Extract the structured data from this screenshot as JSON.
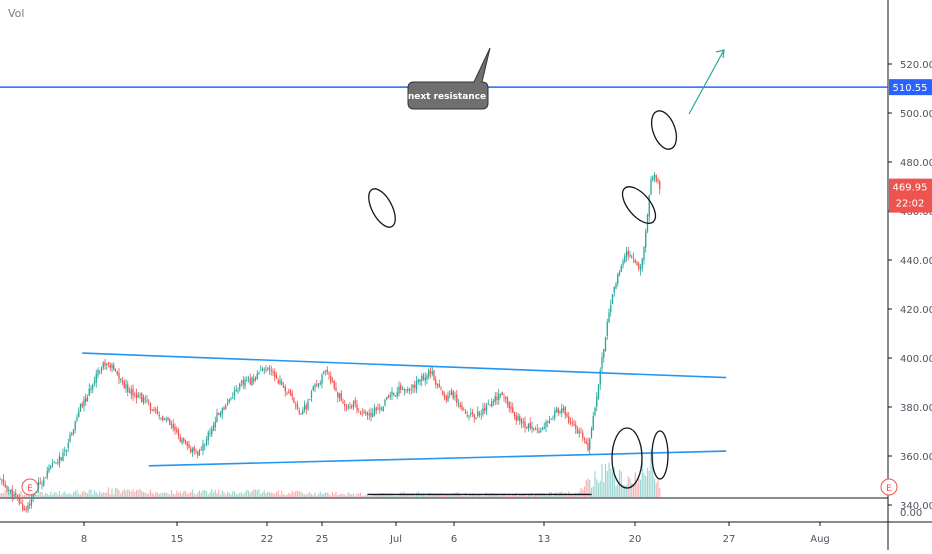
{
  "header": {
    "volume_label": "Vol"
  },
  "chart_data": {
    "type": "candlestick",
    "x_tick_labels": [
      "8",
      "15",
      "22",
      "25",
      "Jul",
      "6",
      "13",
      "20",
      "27",
      "Aug"
    ],
    "price_axis_labels": [
      "520.00",
      "500.00",
      "480.00",
      "460.00",
      "440.00",
      "420.00",
      "400.00",
      "380.00",
      "360.00",
      "340.00"
    ],
    "volume_axis_label": "0.00",
    "ylim": [
      330,
      525
    ],
    "price_path": [
      [
        0,
        350
      ],
      [
        5,
        346
      ],
      [
        10,
        342
      ],
      [
        14,
        338
      ],
      [
        18,
        342
      ],
      [
        22,
        348
      ],
      [
        26,
        352
      ],
      [
        30,
        356
      ],
      [
        33,
        358
      ],
      [
        36,
        360
      ],
      [
        40,
        368
      ],
      [
        43,
        374
      ],
      [
        46,
        380
      ],
      [
        50,
        384
      ],
      [
        55,
        394
      ],
      [
        60,
        398
      ],
      [
        64,
        396
      ],
      [
        68,
        392
      ],
      [
        72,
        388
      ],
      [
        76,
        386
      ],
      [
        80,
        384
      ],
      [
        84,
        382
      ],
      [
        88,
        378
      ],
      [
        90,
        376
      ],
      [
        94,
        375
      ],
      [
        98,
        372
      ],
      [
        102,
        368
      ],
      [
        106,
        364
      ],
      [
        110,
        362
      ],
      [
        112,
        360
      ],
      [
        116,
        364
      ],
      [
        120,
        370
      ],
      [
        124,
        376
      ],
      [
        128,
        380
      ],
      [
        132,
        384
      ],
      [
        136,
        388
      ],
      [
        140,
        390
      ],
      [
        144,
        391
      ],
      [
        148,
        394
      ],
      [
        152,
        395
      ],
      [
        156,
        394
      ],
      [
        160,
        390
      ],
      [
        164,
        386
      ],
      [
        168,
        382
      ],
      [
        172,
        378
      ],
      [
        175,
        380
      ],
      [
        178,
        386
      ],
      [
        182,
        390
      ],
      [
        186,
        394
      ],
      [
        190,
        390
      ],
      [
        194,
        384
      ],
      [
        198,
        380
      ],
      [
        202,
        381
      ],
      [
        206,
        378
      ],
      [
        210,
        376
      ],
      [
        214,
        378
      ],
      [
        218,
        380
      ],
      [
        222,
        384
      ],
      [
        226,
        386
      ],
      [
        230,
        388
      ],
      [
        234,
        386
      ],
      [
        238,
        390
      ],
      [
        242,
        392
      ],
      [
        246,
        395
      ],
      [
        250,
        388
      ],
      [
        254,
        384
      ],
      [
        258,
        386
      ],
      [
        262,
        382
      ],
      [
        266,
        378
      ],
      [
        270,
        376
      ],
      [
        274,
        378
      ],
      [
        278,
        380
      ],
      [
        282,
        383
      ],
      [
        286,
        385
      ],
      [
        290,
        381
      ],
      [
        294,
        376
      ],
      [
        298,
        374
      ],
      [
        302,
        372
      ],
      [
        306,
        370
      ],
      [
        310,
        372
      ],
      [
        314,
        376
      ],
      [
        318,
        378
      ],
      [
        322,
        378
      ],
      [
        326,
        374
      ],
      [
        330,
        370
      ],
      [
        334,
        366
      ],
      [
        336,
        362
      ],
      [
        338,
        372
      ],
      [
        342,
        390
      ],
      [
        346,
        410
      ],
      [
        350,
        425
      ],
      [
        354,
        436
      ],
      [
        358,
        442
      ],
      [
        362,
        440
      ],
      [
        366,
        437
      ],
      [
        368,
        445
      ],
      [
        370,
        460
      ],
      [
        372,
        472
      ],
      [
        374,
        476
      ],
      [
        376,
        471
      ],
      [
        377,
        469.95
      ]
    ],
    "volume_levels": [
      [
        0,
        0.2
      ],
      [
        30,
        0.15
      ],
      [
        60,
        0.25
      ],
      [
        90,
        0.18
      ],
      [
        120,
        0.2
      ],
      [
        150,
        0.2
      ],
      [
        180,
        0.15
      ],
      [
        210,
        0.12
      ],
      [
        240,
        0.15
      ],
      [
        270,
        0.12
      ],
      [
        300,
        0.12
      ],
      [
        330,
        0.15
      ],
      [
        345,
        0.9
      ],
      [
        360,
        0.5
      ],
      [
        372,
        1.2
      ],
      [
        377,
        0.4
      ]
    ],
    "annotations": {
      "callout_text": "next resistance",
      "resistance_price": 510.55,
      "resistance_label": "510.55",
      "last_price_label": "469.95",
      "countdown_label": "22:02",
      "event_badge": "E"
    },
    "drawings": {
      "trendlines": [
        {
          "from": [
            47,
            402
          ],
          "to": [
            415,
            392
          ]
        },
        {
          "from": [
            85,
            356
          ],
          "to": [
            415,
            362
          ]
        }
      ],
      "volume_guide": {
        "from": [
          210,
          0.12
        ],
        "to": [
          338,
          0.12
        ]
      }
    },
    "colors": {
      "up": "#26a69a",
      "down": "#ef5350",
      "trendline": "#2196f3",
      "arrow": "#26a69a",
      "resistance": "#2962ff",
      "last_price": "#ef5350",
      "axis_text": "#50535e",
      "grid": "#e0e3eb"
    }
  }
}
